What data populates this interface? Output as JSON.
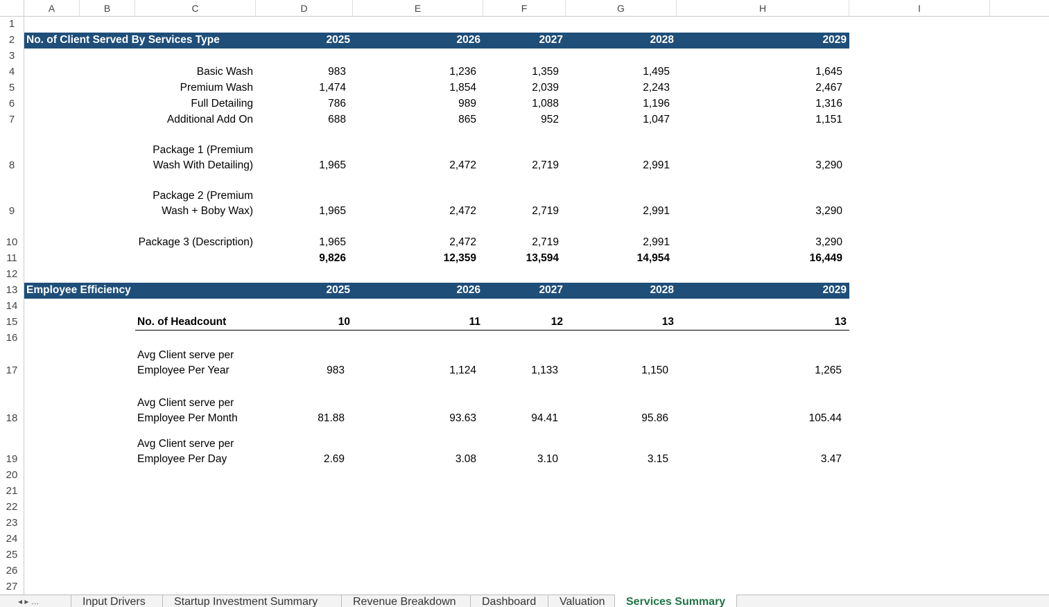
{
  "column_headers": [
    "A",
    "B",
    "C",
    "D",
    "E",
    "F",
    "G",
    "H",
    "I"
  ],
  "row_numbers": [
    1,
    2,
    3,
    4,
    5,
    6,
    7,
    8,
    9,
    10,
    11,
    12,
    13,
    14,
    15,
    16,
    17,
    18,
    19,
    20,
    21,
    22,
    23,
    24,
    25,
    26,
    27
  ],
  "client_section": {
    "title": "No. of Client Served By Services Type",
    "years": [
      "2025",
      "2026",
      "2027",
      "2028",
      "2029"
    ],
    "rows": [
      {
        "label": "Basic Wash",
        "values": [
          "983",
          "1,236",
          "1,359",
          "1,495",
          "1,645"
        ]
      },
      {
        "label": "Premium Wash",
        "values": [
          "1,474",
          "1,854",
          "2,039",
          "2,243",
          "2,467"
        ]
      },
      {
        "label": "Full Detailing",
        "values": [
          "786",
          "989",
          "1,088",
          "1,196",
          "1,316"
        ]
      },
      {
        "label": "Additional Add On",
        "values": [
          "688",
          "865",
          "952",
          "1,047",
          "1,151"
        ]
      },
      {
        "label": "Package 1 (Premium Wash With Detailing)",
        "values": [
          "1,965",
          "2,472",
          "2,719",
          "2,991",
          "3,290"
        ]
      },
      {
        "label": "Package 2 (Premium Wash + Boby Wax)",
        "values": [
          "1,965",
          "2,472",
          "2,719",
          "2,991",
          "3,290"
        ]
      },
      {
        "label": "Package 3 (Description)",
        "values": [
          "1,965",
          "2,472",
          "2,719",
          "2,991",
          "3,290"
        ]
      }
    ],
    "total": [
      "9,826",
      "12,359",
      "13,594",
      "14,954",
      "16,449"
    ]
  },
  "efficiency_section": {
    "title": "Employee Efficiency",
    "years": [
      "2025",
      "2026",
      "2027",
      "2028",
      "2029"
    ],
    "headcount": {
      "label": "No. of Headcount",
      "values": [
        "10",
        "11",
        "12",
        "13",
        "13"
      ]
    },
    "rows": [
      {
        "label": "Avg Client serve per Employee Per Year",
        "values": [
          "983",
          "1,124",
          "1,133",
          "1,150",
          "1,265"
        ]
      },
      {
        "label": "Avg Client serve per Employee Per Month",
        "values": [
          "81.88",
          "93.63",
          "94.41",
          "95.86",
          "105.44"
        ]
      },
      {
        "label": "Avg Client serve per Employee Per Day",
        "values": [
          "2.69",
          "3.08",
          "3.10",
          "3.15",
          "3.47"
        ]
      }
    ]
  },
  "tabs": [
    "Input Drivers",
    "Startup Investment Summary",
    "Revenue Breakdown",
    "Dashboard",
    "Valuation",
    "Services Summary"
  ],
  "active_tab": 5
}
